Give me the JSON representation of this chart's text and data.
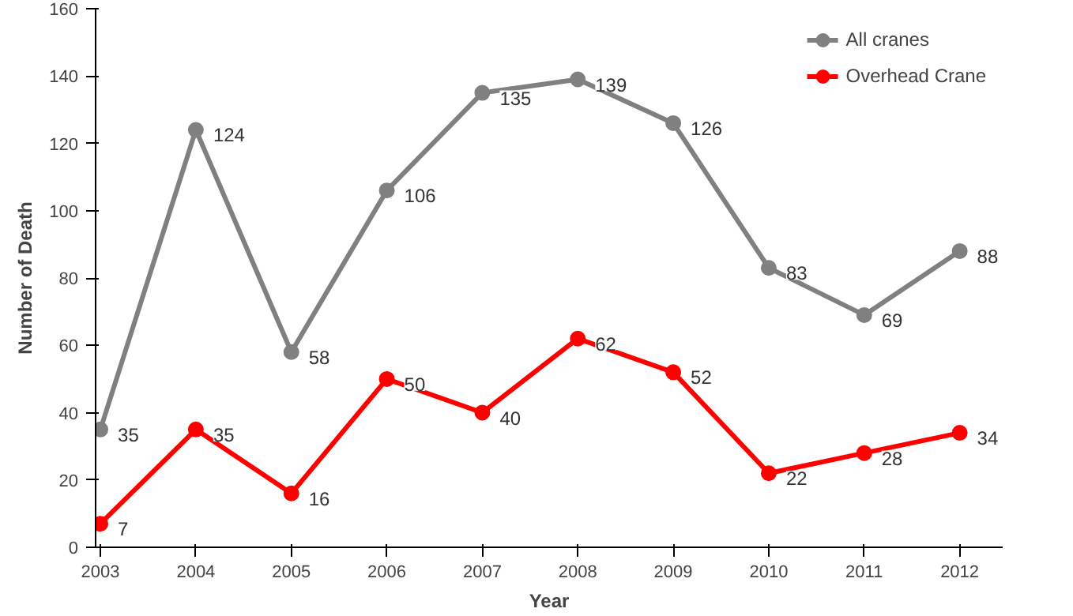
{
  "chart_data": {
    "type": "line",
    "xlabel": "Year",
    "ylabel": "Number of Death",
    "x": [
      2003,
      2004,
      2005,
      2006,
      2007,
      2008,
      2009,
      2010,
      2011,
      2012
    ],
    "xlim": [
      2002.95,
      2012.45
    ],
    "xticks": [
      2003,
      2004,
      2005,
      2006,
      2007,
      2008,
      2009,
      2010,
      2011,
      2012
    ],
    "ylim": [
      0,
      160
    ],
    "yticks": [
      0,
      20,
      40,
      60,
      80,
      100,
      120,
      140,
      160
    ],
    "series": [
      {
        "name": "All cranes",
        "color": "#808080",
        "values": [
          35,
          124,
          58,
          106,
          135,
          139,
          126,
          83,
          69,
          88
        ]
      },
      {
        "name": "Overhead Crane",
        "color": "#ff0000",
        "values": [
          7,
          35,
          16,
          50,
          40,
          62,
          52,
          22,
          28,
          34
        ]
      }
    ],
    "data_labels": true,
    "marker": "circle",
    "line_style": "solid",
    "legend": "top right",
    "grid": false
  }
}
